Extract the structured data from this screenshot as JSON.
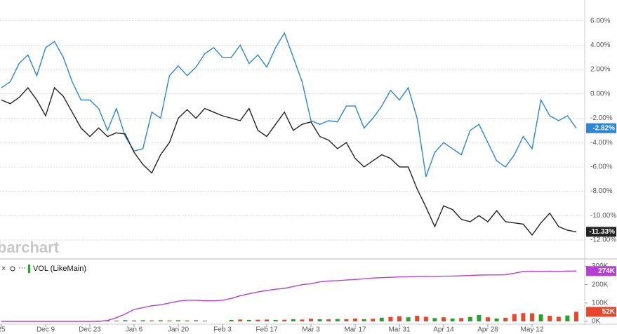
{
  "chart_data": [
    {
      "type": "line",
      "watermark": "barchart",
      "ylim": [
        -13.5,
        7.25
      ],
      "yticks": [
        {
          "value": 6,
          "label": "6.00%"
        },
        {
          "value": 4,
          "label": "4.00%"
        },
        {
          "value": 2,
          "label": "2.00%"
        },
        {
          "value": 0,
          "label": "0.00%"
        },
        {
          "value": -2,
          "label": "-2.00%"
        },
        {
          "value": -4,
          "label": "-4.00%"
        },
        {
          "value": -6,
          "label": "-6.00%"
        },
        {
          "value": -8,
          "label": "-8.00%"
        },
        {
          "value": -10,
          "label": "-10.00%"
        },
        {
          "value": -12,
          "label": "-12.00%"
        }
      ],
      "grid": true,
      "series": [
        {
          "color": "#2a86d8",
          "values": [
            0.5,
            1.0,
            2.5,
            3.2,
            1.5,
            3.8,
            4.3,
            3.0,
            1.0,
            -0.5,
            -0.5,
            -1.2,
            -3.0,
            -1.2,
            -3.5,
            -4.7,
            -4.5,
            -1.5,
            -2.0,
            1.5,
            2.3,
            1.5,
            2.2,
            3.3,
            3.8,
            3.0,
            3.0,
            4.0,
            2.5,
            3.2,
            2.2,
            3.8,
            5.0,
            3.0,
            1.0,
            -2.2,
            -2.5,
            -2.2,
            -2.3,
            -1.0,
            -1.0,
            -2.8,
            -2.0,
            -1.0,
            0.3,
            -0.5,
            0.5,
            -2.0,
            -6.8,
            -4.8,
            -4.0,
            -4.5,
            -5.0,
            -3.0,
            -2.5,
            -4.0,
            -5.5,
            -6.0,
            -5.0,
            -3.5,
            -4.5,
            -0.5,
            -1.8,
            -2.2,
            -1.8,
            -2.82
          ],
          "value_labels": [
            null,
            null,
            null,
            null,
            null,
            null,
            null,
            null,
            null,
            null,
            null,
            null,
            null,
            null,
            null,
            null,
            null,
            null,
            null,
            null,
            null,
            null,
            null,
            null,
            null,
            null,
            null,
            null,
            null,
            null,
            null,
            null,
            null,
            null,
            null,
            null,
            null,
            null,
            null,
            null,
            null,
            null,
            null,
            null,
            null,
            null,
            null,
            null,
            null,
            null,
            null,
            null,
            null,
            null,
            null,
            null,
            null,
            null,
            null,
            null,
            null,
            null,
            null,
            null,
            null,
            "-2.82%"
          ]
        },
        {
          "color": "#222222",
          "values": [
            -0.5,
            -0.8,
            -0.3,
            0.5,
            -0.5,
            -1.8,
            0.5,
            -0.2,
            -1.5,
            -2.8,
            -3.5,
            -2.8,
            -3.5,
            -3.2,
            -3.3,
            -4.8,
            -5.8,
            -6.5,
            -5.0,
            -4.0,
            -2.0,
            -1.3,
            -2.0,
            -1.2,
            -1.5,
            -1.8,
            -2.0,
            -2.2,
            -1.2,
            -3.0,
            -3.5,
            -2.5,
            -1.5,
            -3.0,
            -2.5,
            -2.3,
            -3.5,
            -3.8,
            -4.5,
            -4.0,
            -5.3,
            -6.0,
            -5.5,
            -5.0,
            -5.3,
            -6.0,
            -6.0,
            -7.8,
            -9.3,
            -10.9,
            -9.2,
            -9.5,
            -10.3,
            -10.5,
            -10.0,
            -10.5,
            -9.6,
            -10.5,
            -10.6,
            -10.7,
            -11.6,
            -10.6,
            -9.8,
            -10.9,
            -11.2,
            -11.33
          ],
          "value_labels": [
            null,
            null,
            null,
            null,
            null,
            null,
            null,
            null,
            null,
            null,
            null,
            null,
            null,
            null,
            null,
            null,
            null,
            null,
            null,
            null,
            null,
            null,
            null,
            null,
            null,
            null,
            null,
            null,
            null,
            null,
            null,
            null,
            null,
            null,
            null,
            null,
            null,
            null,
            null,
            null,
            null,
            null,
            null,
            null,
            null,
            null,
            null,
            null,
            null,
            null,
            null,
            null,
            null,
            null,
            null,
            null,
            null,
            null,
            null,
            null,
            null,
            null,
            null,
            null,
            null,
            "-11.33%"
          ]
        }
      ]
    },
    {
      "type": "volume",
      "categories": [
        "25",
        null,
        null,
        null,
        null,
        "Dec 9",
        null,
        null,
        null,
        null,
        "Dec 23",
        null,
        null,
        null,
        null,
        "Jan 6",
        null,
        null,
        null,
        null,
        "Jan 20",
        null,
        null,
        null,
        null,
        "Feb 3",
        null,
        null,
        null,
        null,
        "Feb 17",
        null,
        null,
        null,
        null,
        "Mar 3",
        null,
        null,
        null,
        null,
        "Mar 17",
        null,
        null,
        null,
        null,
        "Mar 31",
        null,
        null,
        null,
        null,
        "Apr 14",
        null,
        null,
        null,
        null,
        "Apr 28",
        null,
        null,
        null,
        null,
        "May 12",
        null,
        null,
        null,
        null,
        null
      ],
      "ylim": [
        0,
        324
      ],
      "yticks": [
        {
          "value": 0,
          "label": "0K"
        },
        {
          "value": 100,
          "label": "100K"
        },
        {
          "value": 200,
          "label": "200K"
        },
        {
          "value": 300,
          "label": "300K"
        }
      ],
      "series": [
        {
          "name": "VOL (LikeMain)",
          "type": "bar",
          "color": "#2ca02c",
          "values": [
            0,
            0,
            0,
            0,
            0,
            0,
            0,
            0,
            0,
            0,
            0,
            4,
            5,
            4,
            6,
            5,
            6,
            5,
            6,
            5,
            6,
            5,
            6,
            4,
            0,
            0,
            8,
            10,
            8,
            9,
            10,
            8,
            9,
            12,
            10,
            14,
            12,
            11,
            13,
            12,
            15,
            12,
            14,
            20,
            24,
            28,
            22,
            30,
            25,
            18,
            22,
            15,
            18,
            24,
            35,
            22,
            16,
            20,
            40,
            45,
            44,
            38,
            30,
            25,
            32,
            52
          ],
          "colors": [
            "#2ca02c",
            "#e8472b",
            "#2ca02c",
            "#e8472b",
            "#2ca02c",
            "#e8472b",
            "#2ca02c",
            "#e8472b",
            "#2ca02c",
            "#e8472b",
            "#2ca02c",
            "#e8472b",
            "#2ca02c",
            "#e8472b",
            "#2060d0",
            "#e8472b",
            "#2ca02c",
            "#e8472b",
            "#2ca02c",
            "#e8472b",
            "#2ca02c",
            "#e8472b",
            "#2ca02c",
            "#e8472b",
            "#2ca02c",
            "#e8472b",
            "#2ca02c",
            "#e8472b",
            "#2ca02c",
            "#e8472b",
            "#e8472b",
            "#2ca02c",
            "#e8472b",
            "#2ca02c",
            "#e8472b",
            "#e8472b",
            "#2ca02c",
            "#e8472b",
            "#2ca02c",
            "#e8472b",
            "#e8472b",
            "#2ca02c",
            "#e8472b",
            "#2ca02c",
            "#e8472b",
            "#e8472b",
            "#2ca02c",
            "#e8472b",
            "#e8472b",
            "#2ca02c",
            "#e8472b",
            "#2ca02c",
            "#e8472b",
            "#2ca02c",
            "#2ca02c",
            "#e8472b",
            "#2ca02c",
            "#e8472b",
            "#e8472b",
            "#e8472b",
            "#e8472b",
            "#2ca02c",
            "#e8472b",
            "#e8472b",
            "#2ca02c",
            "#e8472b"
          ],
          "value_labels": [
            null,
            null,
            null,
            null,
            null,
            null,
            null,
            null,
            null,
            null,
            null,
            null,
            null,
            null,
            null,
            null,
            null,
            null,
            null,
            null,
            null,
            null,
            null,
            null,
            null,
            null,
            null,
            null,
            null,
            null,
            null,
            null,
            null,
            null,
            null,
            null,
            null,
            null,
            null,
            null,
            null,
            null,
            null,
            null,
            null,
            null,
            null,
            null,
            null,
            null,
            null,
            null,
            null,
            null,
            null,
            null,
            null,
            null,
            null,
            null,
            null,
            null,
            null,
            null,
            null,
            "52K"
          ]
        },
        {
          "type": "line",
          "color": "#b83fd6",
          "values": [
            0,
            0,
            0,
            0,
            0,
            0,
            0,
            0,
            0,
            0,
            0,
            0,
            5,
            20,
            40,
            65,
            75,
            85,
            90,
            100,
            110,
            115,
            115,
            112,
            112,
            115,
            125,
            140,
            150,
            160,
            168,
            175,
            180,
            190,
            200,
            205,
            215,
            220,
            222,
            225,
            228,
            232,
            236,
            238,
            240,
            242,
            243,
            244,
            245,
            245,
            246,
            247,
            248,
            250,
            252,
            253,
            253,
            254,
            262,
            272,
            273,
            272,
            273,
            272,
            274,
            274
          ],
          "value_labels": [
            null,
            null,
            null,
            null,
            null,
            null,
            null,
            null,
            null,
            null,
            null,
            null,
            null,
            null,
            null,
            null,
            null,
            null,
            null,
            null,
            null,
            null,
            null,
            null,
            null,
            null,
            null,
            null,
            null,
            null,
            null,
            null,
            null,
            null,
            null,
            null,
            null,
            null,
            null,
            null,
            null,
            null,
            null,
            null,
            null,
            null,
            null,
            null,
            null,
            null,
            null,
            null,
            null,
            null,
            null,
            null,
            null,
            null,
            null,
            null,
            null,
            null,
            null,
            null,
            null,
            "274K"
          ]
        }
      ]
    }
  ]
}
